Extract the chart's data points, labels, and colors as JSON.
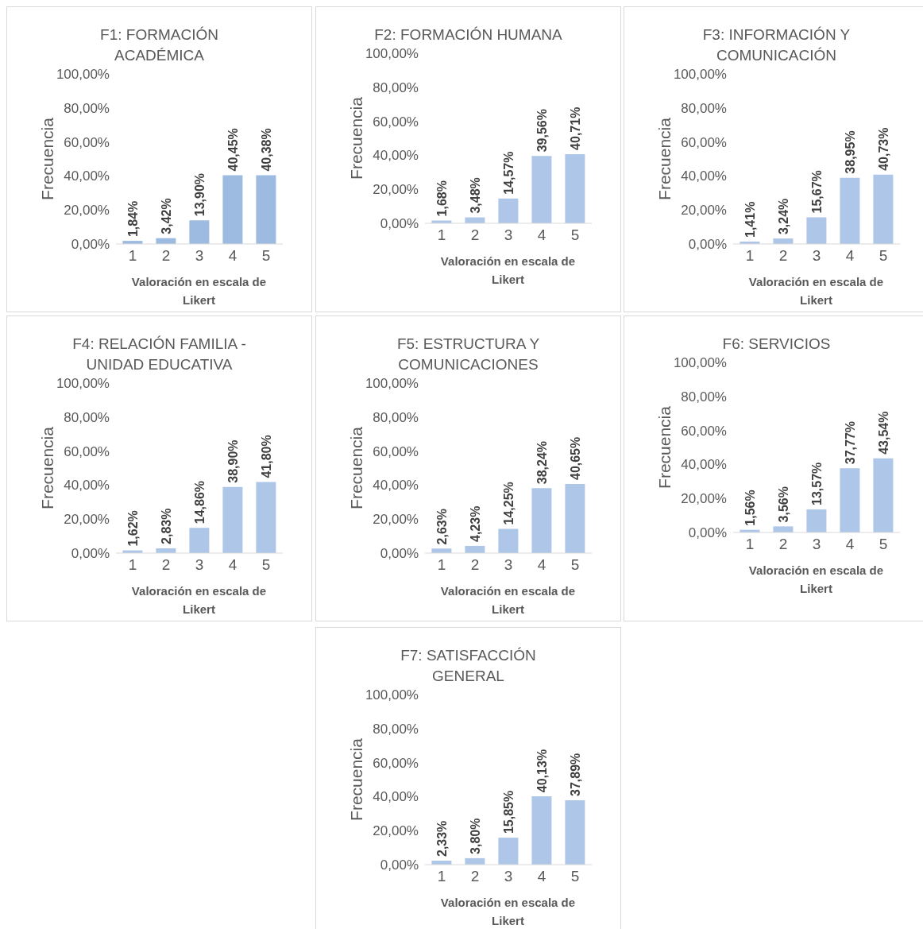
{
  "chart_data": [
    {
      "type": "bar",
      "title": "F1: FORMACIÓN ACADÉMICA",
      "xlabel": "Valoración en escala de Likert",
      "ylabel": "Frecuencia",
      "categories": [
        "1",
        "2",
        "3",
        "4",
        "5"
      ],
      "values": [
        1.84,
        3.42,
        13.9,
        40.45,
        40.38
      ],
      "value_labels": [
        "1,84%",
        "3,42%",
        "13,90%",
        "40,45%",
        "40,38%"
      ],
      "color": "#9dbbe1",
      "ylim": [
        0,
        100
      ],
      "yticks": [
        {
          "value": 0,
          "label": "0,00%"
        },
        {
          "value": 20,
          "label": "20,00%"
        },
        {
          "value": 40,
          "label": "40,00%"
        },
        {
          "value": 60,
          "label": "60,00%"
        },
        {
          "value": 80,
          "label": "80,00%"
        },
        {
          "value": 100,
          "label": "100,00%"
        }
      ],
      "grid": false,
      "legend": false
    },
    {
      "type": "bar",
      "title": "F2: FORMACIÓN HUMANA",
      "xlabel": "Valoración en escala de Likert",
      "ylabel": "Frecuencia",
      "categories": [
        "1",
        "2",
        "3",
        "4",
        "5"
      ],
      "values": [
        1.68,
        3.48,
        14.57,
        39.56,
        40.71
      ],
      "value_labels": [
        "1,68%",
        "3,48%",
        "14,57%",
        "39,56%",
        "40,71%"
      ],
      "color": "#aec7e8",
      "ylim": [
        0,
        100
      ],
      "yticks": [
        {
          "value": 0,
          "label": "0,00%"
        },
        {
          "value": 20,
          "label": "20,00%"
        },
        {
          "value": 40,
          "label": "40,00%"
        },
        {
          "value": 60,
          "label": "60,00%"
        },
        {
          "value": 80,
          "label": "80,00%"
        },
        {
          "value": 100,
          "label": "100,00%"
        }
      ],
      "grid": false,
      "legend": false
    },
    {
      "type": "bar",
      "title": "F3: INFORMACIÓN Y COMUNICACIÓN",
      "xlabel": "Valoración en escala de Likert",
      "ylabel": "Frecuencia",
      "categories": [
        "1",
        "2",
        "3",
        "4",
        "5"
      ],
      "values": [
        1.41,
        3.24,
        15.67,
        38.95,
        40.73
      ],
      "value_labels": [
        "1,41%",
        "3,24%",
        "15,67%",
        "38,95%",
        "40,73%"
      ],
      "color": "#aec7e8",
      "ylim": [
        0,
        100
      ],
      "yticks": [
        {
          "value": 0,
          "label": "0,00%"
        },
        {
          "value": 20,
          "label": "20,00%"
        },
        {
          "value": 40,
          "label": "40,00%"
        },
        {
          "value": 60,
          "label": "60,00%"
        },
        {
          "value": 80,
          "label": "80,00%"
        },
        {
          "value": 100,
          "label": "100,00%"
        }
      ],
      "grid": false,
      "legend": false
    },
    {
      "type": "bar",
      "title": "F4: RELACIÓN FAMILIA - UNIDAD EDUCATIVA",
      "xlabel": "Valoración en escala de Likert",
      "ylabel": "Frecuencia",
      "categories": [
        "1",
        "2",
        "3",
        "4",
        "5"
      ],
      "values": [
        1.62,
        2.83,
        14.86,
        38.9,
        41.8
      ],
      "value_labels": [
        "1,62%",
        "2,83%",
        "14,86%",
        "38,90%",
        "41,80%"
      ],
      "color": "#aec7e8",
      "ylim": [
        0,
        100
      ],
      "yticks": [
        {
          "value": 0,
          "label": "0,00%"
        },
        {
          "value": 20,
          "label": "20,00%"
        },
        {
          "value": 40,
          "label": "40,00%"
        },
        {
          "value": 60,
          "label": "60,00%"
        },
        {
          "value": 80,
          "label": "80,00%"
        },
        {
          "value": 100,
          "label": "100,00%"
        }
      ],
      "grid": false,
      "legend": false
    },
    {
      "type": "bar",
      "title": "F5: ESTRUCTURA Y COMUNICACIONES",
      "xlabel": "Valoración en escala de Likert",
      "ylabel": "Frecuencia",
      "categories": [
        "1",
        "2",
        "3",
        "4",
        "5"
      ],
      "values": [
        2.63,
        4.23,
        14.25,
        38.24,
        40.65
      ],
      "value_labels": [
        "2,63%",
        "4,23%",
        "14,25%",
        "38,24%",
        "40,65%"
      ],
      "color": "#aec7e8",
      "ylim": [
        0,
        100
      ],
      "yticks": [
        {
          "value": 0,
          "label": "0,00%"
        },
        {
          "value": 20,
          "label": "20,00%"
        },
        {
          "value": 40,
          "label": "40,00%"
        },
        {
          "value": 60,
          "label": "60,00%"
        },
        {
          "value": 80,
          "label": "80,00%"
        },
        {
          "value": 100,
          "label": "100,00%"
        }
      ],
      "grid": false,
      "legend": false
    },
    {
      "type": "bar",
      "title": "F6: SERVICIOS",
      "xlabel": "Valoración en escala de Likert",
      "ylabel": "Frecuencia",
      "categories": [
        "1",
        "2",
        "3",
        "4",
        "5"
      ],
      "values": [
        1.56,
        3.56,
        13.57,
        37.77,
        43.54
      ],
      "value_labels": [
        "1,56%",
        "3,56%",
        "13,57%",
        "37,77%",
        "43,54%"
      ],
      "color": "#aec7e8",
      "ylim": [
        0,
        100
      ],
      "yticks": [
        {
          "value": 0,
          "label": "0,00%"
        },
        {
          "value": 20,
          "label": "20,00%"
        },
        {
          "value": 40,
          "label": "40,00%"
        },
        {
          "value": 60,
          "label": "60,00%"
        },
        {
          "value": 80,
          "label": "80,00%"
        },
        {
          "value": 100,
          "label": "100,00%"
        }
      ],
      "grid": false,
      "legend": false
    },
    {
      "type": "bar",
      "title": "F7: SATISFACCIÓN GENERAL",
      "xlabel": "Valoración en escala de Likert",
      "ylabel": "Frecuencia",
      "categories": [
        "1",
        "2",
        "3",
        "4",
        "5"
      ],
      "values": [
        2.33,
        3.8,
        15.85,
        40.13,
        37.89
      ],
      "value_labels": [
        "2,33%",
        "3,80%",
        "15,85%",
        "40,13%",
        "37,89%"
      ],
      "color": "#aec7e8",
      "ylim": [
        0,
        100
      ],
      "yticks": [
        {
          "value": 0,
          "label": "0,00%"
        },
        {
          "value": 20,
          "label": "20,00%"
        },
        {
          "value": 40,
          "label": "40,00%"
        },
        {
          "value": 60,
          "label": "60,00%"
        },
        {
          "value": 80,
          "label": "80,00%"
        },
        {
          "value": 100,
          "label": "100,00%"
        }
      ],
      "grid": false,
      "legend": false
    }
  ]
}
